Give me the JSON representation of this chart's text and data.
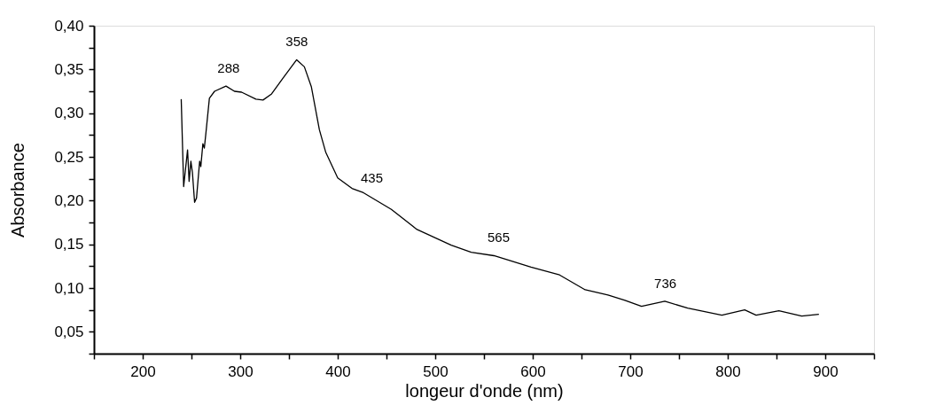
{
  "chart_data": {
    "type": "line",
    "xlabel": "longeur d'onde (nm)",
    "ylabel": "Absorbance",
    "xlim": [
      150,
      950
    ],
    "ylim": [
      0.025,
      0.4
    ],
    "xticks": [
      {
        "value": 150,
        "label": null
      },
      200,
      {
        "value": 250,
        "label": null
      },
      300,
      {
        "value": 350,
        "label": null
      },
      400,
      {
        "value": 450,
        "label": null
      },
      500,
      {
        "value": 550,
        "label": null
      },
      600,
      {
        "value": 650,
        "label": null
      },
      700,
      {
        "value": 750,
        "label": null
      },
      800,
      {
        "value": 850,
        "label": null
      },
      900,
      {
        "value": 950,
        "label": null
      }
    ],
    "yticks": [
      {
        "value": 0.025,
        "label": null
      },
      {
        "value": 0.05,
        "label": "0,05"
      },
      {
        "value": 0.075,
        "label": null
      },
      {
        "value": 0.1,
        "label": "0,10"
      },
      {
        "value": 0.125,
        "label": null
      },
      {
        "value": 0.15,
        "label": "0,15"
      },
      {
        "value": 0.175,
        "label": null
      },
      {
        "value": 0.2,
        "label": "0,20"
      },
      {
        "value": 0.225,
        "label": null
      },
      {
        "value": 0.25,
        "label": "0,25"
      },
      {
        "value": 0.275,
        "label": null
      },
      {
        "value": 0.3,
        "label": "0,30"
      },
      {
        "value": 0.325,
        "label": null
      },
      {
        "value": 0.35,
        "label": "0,35"
      },
      {
        "value": 0.375,
        "label": null
      },
      {
        "value": 0.4,
        "label": "0,40"
      }
    ],
    "grid": false,
    "marker": "none",
    "line_style": "solid",
    "series": [
      {
        "color": "#000000",
        "x": [
          239.5,
          242,
          246,
          247.6,
          249.4,
          251,
          253.2,
          255.2,
          258.4,
          259.6,
          261.7,
          263.2,
          264.9,
          268.4,
          273.7,
          285.4,
          294.1,
          301.4,
          316.1,
          323.4,
          332.2,
          343.9,
          357.9,
          365.8,
          373,
          381.2,
          387.8,
          400,
          414.6,
          426.4,
          455,
          481.3,
          516.4,
          536.9,
          560.2,
          598.2,
          627.5,
          653.8,
          677.2,
          694.6,
          711.6,
          735.5,
          758.9,
          794,
          817.4,
          829.1,
          852.5,
          875.9,
          893.5
        ],
        "values": [
          0.316,
          0.216,
          0.258,
          0.222,
          0.245,
          0.232,
          0.198,
          0.203,
          0.245,
          0.239,
          0.265,
          0.26,
          0.278,
          0.317,
          0.325,
          0.331,
          0.325,
          0.324,
          0.316,
          0.315,
          0.322,
          0.34,
          0.361,
          0.353,
          0.33,
          0.281,
          0.255,
          0.226,
          0.214,
          0.209,
          0.19,
          0.167,
          0.149,
          0.141,
          0.137,
          0.124,
          0.115,
          0.098,
          0.092,
          0.086,
          0.079,
          0.085,
          0.077,
          0.069,
          0.075,
          0.069,
          0.074,
          0.068,
          0.07
        ]
      }
    ],
    "annotations": [
      {
        "text": "288",
        "x": 288,
        "y": 0.331
      },
      {
        "text": "358",
        "x": 358,
        "y": 0.361
      },
      {
        "text": "435",
        "x": 435,
        "y": 0.205
      },
      {
        "text": "565",
        "x": 565,
        "y": 0.137
      },
      {
        "text": "736",
        "x": 736,
        "y": 0.085
      }
    ]
  }
}
